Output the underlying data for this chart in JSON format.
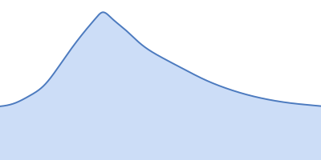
{
  "fill_color": "#ccddf7",
  "line_color": "#4d7bbf",
  "line_width": 1.4,
  "background_color": "#ffffff",
  "figsize": [
    4.0,
    2.0
  ],
  "dpi": 100,
  "curve_x": [
    -0.15,
    -0.05,
    0.0,
    0.05,
    0.1,
    0.15,
    0.2,
    0.25,
    0.28,
    0.3,
    0.33,
    0.38,
    0.43,
    0.5,
    0.58,
    0.65,
    0.72,
    0.8,
    0.88,
    0.95,
    1.02,
    1.1,
    1.2
  ],
  "curve_y": [
    0.0,
    0.02,
    0.05,
    0.12,
    0.22,
    0.4,
    0.6,
    0.78,
    0.88,
    0.93,
    0.88,
    0.76,
    0.63,
    0.5,
    0.38,
    0.28,
    0.2,
    0.13,
    0.08,
    0.05,
    0.03,
    0.01,
    0.0
  ],
  "xlim": [
    -0.05,
    1.05
  ],
  "ylim": [
    -0.5,
    1.05
  ]
}
